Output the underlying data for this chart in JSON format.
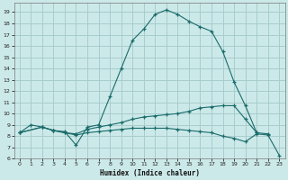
{
  "xlabel": "Humidex (Indice chaleur)",
  "bg_color": "#cce9e9",
  "grid_color": "#a8cccc",
  "line_color": "#1a6b6b",
  "xlim": [
    -0.5,
    23.5
  ],
  "ylim": [
    6.0,
    19.8
  ],
  "xticks": [
    0,
    1,
    2,
    3,
    4,
    5,
    6,
    7,
    8,
    9,
    10,
    11,
    12,
    13,
    14,
    15,
    16,
    17,
    18,
    19,
    20,
    21,
    22,
    23
  ],
  "yticks": [
    6,
    7,
    8,
    9,
    10,
    11,
    12,
    13,
    14,
    15,
    16,
    17,
    18,
    19
  ],
  "line1_x": [
    0,
    1,
    2,
    3,
    4,
    5,
    6,
    7,
    8,
    9,
    10,
    11,
    12,
    13,
    14,
    15,
    16,
    17,
    18,
    19,
    20,
    21,
    22
  ],
  "line1_y": [
    8.3,
    9.0,
    8.8,
    8.5,
    8.4,
    7.2,
    8.8,
    9.0,
    11.5,
    14.0,
    16.5,
    17.5,
    18.8,
    19.2,
    18.8,
    18.2,
    17.7,
    17.3,
    15.5,
    12.8,
    10.7,
    8.3,
    8.2
  ],
  "line2_x": [
    0,
    2,
    3,
    4,
    5,
    6,
    7,
    8,
    9,
    10,
    11,
    12,
    13,
    14,
    15,
    16,
    17,
    18,
    19,
    20,
    21
  ],
  "line2_y": [
    8.3,
    8.8,
    8.5,
    8.3,
    8.2,
    8.6,
    8.8,
    9.0,
    9.2,
    9.5,
    9.7,
    9.8,
    9.9,
    10.0,
    10.2,
    10.5,
    10.6,
    10.7,
    10.7,
    9.5,
    8.3
  ],
  "line3_x": [
    0,
    2,
    3,
    4,
    5,
    6,
    7,
    8,
    9,
    10,
    11,
    12,
    13,
    14,
    15,
    16,
    17,
    18,
    19,
    20,
    21,
    22,
    23
  ],
  "line3_y": [
    8.3,
    8.8,
    8.5,
    8.3,
    8.1,
    8.3,
    8.4,
    8.5,
    8.6,
    8.7,
    8.7,
    8.7,
    8.7,
    8.6,
    8.5,
    8.4,
    8.3,
    8.0,
    7.8,
    7.5,
    8.2,
    8.1,
    6.3
  ]
}
